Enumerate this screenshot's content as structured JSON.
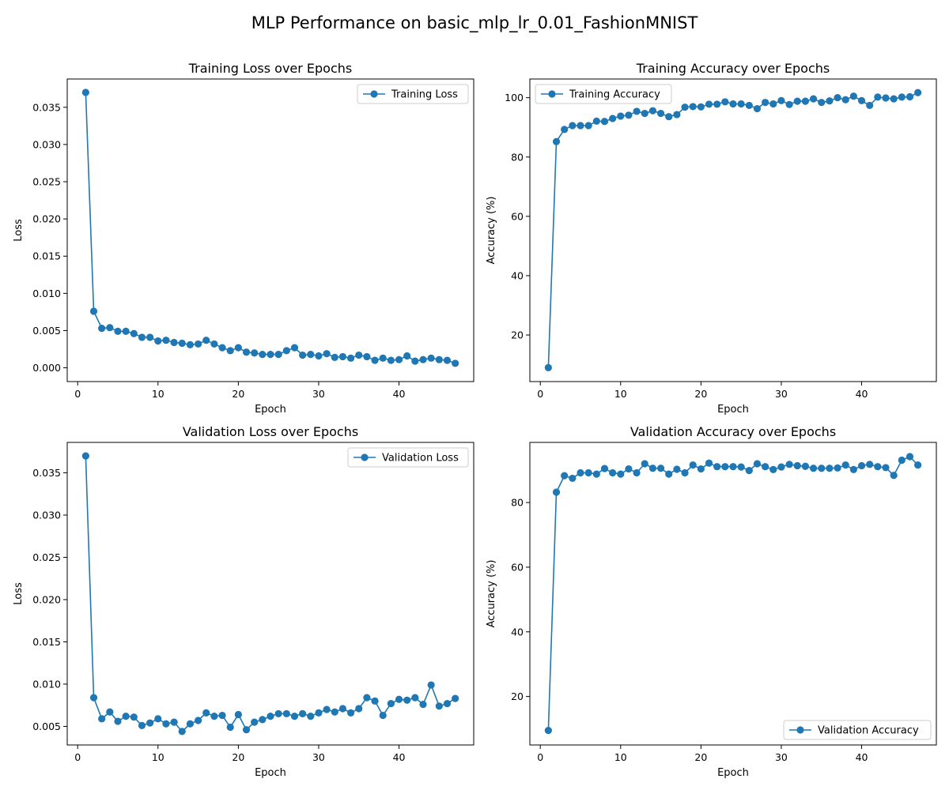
{
  "figure": {
    "title": "MLP Performance on basic_mlp_lr_0.01_FashionMNIST"
  },
  "colors": {
    "series": "#1f77b4",
    "axes": "#000000",
    "legend_border": "#cccccc"
  },
  "chart_data": [
    {
      "type": "line",
      "title": "Training Loss over Epochs",
      "xlabel": "Epoch",
      "ylabel": "Loss",
      "xlim": [
        -1.3,
        49.3
      ],
      "ylim": [
        -0.00185,
        0.0388
      ],
      "xticks": [
        0,
        10,
        20,
        30,
        40
      ],
      "yticks": [
        0.0,
        0.005,
        0.01,
        0.015,
        0.02,
        0.025,
        0.03,
        0.035
      ],
      "ytick_labels": [
        "0.000",
        "0.005",
        "0.010",
        "0.015",
        "0.020",
        "0.025",
        "0.030",
        "0.035"
      ],
      "grid": false,
      "legend_position": "upper right",
      "series": [
        {
          "name": "Training Loss",
          "x": [
            1,
            2,
            3,
            4,
            5,
            6,
            7,
            8,
            9,
            10,
            11,
            12,
            13,
            14,
            15,
            16,
            17,
            18,
            19,
            20,
            21,
            22,
            23,
            24,
            25,
            26,
            27,
            28,
            29,
            30,
            31,
            32,
            33,
            34,
            35,
            36,
            37,
            38,
            39,
            40,
            41,
            42,
            43,
            44,
            45,
            46,
            47
          ],
          "y": [
            0.037,
            0.0076,
            0.0053,
            0.0054,
            0.0049,
            0.0049,
            0.0046,
            0.0041,
            0.0041,
            0.0036,
            0.0037,
            0.0034,
            0.0033,
            0.0031,
            0.0032,
            0.0037,
            0.0032,
            0.0027,
            0.0023,
            0.0027,
            0.0021,
            0.002,
            0.0018,
            0.0018,
            0.0018,
            0.0023,
            0.0027,
            0.0017,
            0.0018,
            0.0016,
            0.0019,
            0.0014,
            0.0015,
            0.0013,
            0.0017,
            0.0015,
            0.001,
            0.0013,
            0.001,
            0.0011,
            0.0016,
            0.0009,
            0.0011,
            0.0013,
            0.0011,
            0.001,
            0.0006
          ]
        }
      ]
    },
    {
      "type": "line",
      "title": "Training Accuracy over Epochs",
      "xlabel": "Epoch",
      "ylabel": "Accuracy (%)",
      "xlim": [
        -1.3,
        49.3
      ],
      "ylim": [
        4.3,
        106.3
      ],
      "xticks": [
        0,
        10,
        20,
        30,
        40
      ],
      "yticks": [
        20,
        40,
        60,
        80,
        100
      ],
      "ytick_labels": [
        "20",
        "40",
        "60",
        "80",
        "100"
      ],
      "grid": false,
      "legend_position": "upper left",
      "series": [
        {
          "name": "Training Accuracy",
          "x": [
            1,
            2,
            3,
            4,
            5,
            6,
            7,
            8,
            9,
            10,
            11,
            12,
            13,
            14,
            15,
            16,
            17,
            18,
            19,
            20,
            21,
            22,
            23,
            24,
            25,
            26,
            27,
            28,
            29,
            30,
            31,
            32,
            33,
            34,
            35,
            36,
            37,
            38,
            39,
            40,
            41,
            42,
            43,
            44,
            45,
            46,
            47
          ],
          "y": [
            9.0,
            85.2,
            89.3,
            90.6,
            90.6,
            90.6,
            92.1,
            92.0,
            93.0,
            93.8,
            94.1,
            95.4,
            94.7,
            95.6,
            94.7,
            93.6,
            94.3,
            96.8,
            97.0,
            96.9,
            97.8,
            97.8,
            98.6,
            97.9,
            97.9,
            97.4,
            96.3,
            98.4,
            97.9,
            99.0,
            97.7,
            98.8,
            98.8,
            99.6,
            98.4,
            98.9,
            100.0,
            99.3,
            100.5,
            99.0,
            97.4,
            100.2,
            99.9,
            99.6,
            100.2,
            100.3,
            101.7
          ]
        }
      ]
    },
    {
      "type": "line",
      "title": "Validation Loss over Epochs",
      "xlabel": "Epoch",
      "ylabel": "Loss",
      "xlim": [
        -1.3,
        49.3
      ],
      "ylim": [
        0.0028,
        0.0386
      ],
      "xticks": [
        0,
        10,
        20,
        30,
        40
      ],
      "yticks": [
        0.005,
        0.01,
        0.015,
        0.02,
        0.025,
        0.03,
        0.035
      ],
      "ytick_labels": [
        "0.005",
        "0.010",
        "0.015",
        "0.020",
        "0.025",
        "0.030",
        "0.035"
      ],
      "grid": false,
      "legend_position": "upper right",
      "series": [
        {
          "name": "Validation Loss",
          "x": [
            1,
            2,
            3,
            4,
            5,
            6,
            7,
            8,
            9,
            10,
            11,
            12,
            13,
            14,
            15,
            16,
            17,
            18,
            19,
            20,
            21,
            22,
            23,
            24,
            25,
            26,
            27,
            28,
            29,
            30,
            31,
            32,
            33,
            34,
            35,
            36,
            37,
            38,
            39,
            40,
            41,
            42,
            43,
            44,
            45,
            46,
            47
          ],
          "y": [
            0.037,
            0.0084,
            0.0059,
            0.0067,
            0.0056,
            0.0062,
            0.0061,
            0.0051,
            0.0054,
            0.0059,
            0.0053,
            0.0055,
            0.0044,
            0.0053,
            0.0057,
            0.0066,
            0.0062,
            0.0063,
            0.0049,
            0.0064,
            0.0046,
            0.0055,
            0.0058,
            0.0062,
            0.0065,
            0.0065,
            0.0062,
            0.0065,
            0.0062,
            0.0066,
            0.007,
            0.0067,
            0.0071,
            0.0066,
            0.0071,
            0.0084,
            0.008,
            0.0063,
            0.0077,
            0.0082,
            0.0081,
            0.0084,
            0.0076,
            0.0099,
            0.0074,
            0.0077,
            0.0083
          ]
        }
      ]
    },
    {
      "type": "line",
      "title": "Validation Accuracy over Epochs",
      "xlabel": "Epoch",
      "ylabel": "Accuracy (%)",
      "xlim": [
        -1.3,
        49.3
      ],
      "ylim": [
        5.0,
        98.6
      ],
      "xticks": [
        0,
        10,
        20,
        30,
        40
      ],
      "yticks": [
        20,
        40,
        60,
        80
      ],
      "ytick_labels": [
        "20",
        "40",
        "60",
        "80"
      ],
      "grid": false,
      "legend_position": "lower right",
      "series": [
        {
          "name": "Validation Accuracy",
          "x": [
            1,
            2,
            3,
            4,
            5,
            6,
            7,
            8,
            9,
            10,
            11,
            12,
            13,
            14,
            15,
            16,
            17,
            18,
            19,
            20,
            21,
            22,
            23,
            24,
            25,
            26,
            27,
            28,
            29,
            30,
            31,
            32,
            33,
            34,
            35,
            36,
            37,
            38,
            39,
            40,
            41,
            42,
            43,
            44,
            45,
            46,
            47
          ],
          "y": [
            9.5,
            83.2,
            88.3,
            87.5,
            89.2,
            89.2,
            88.8,
            90.5,
            89.2,
            88.8,
            90.4,
            89.2,
            92.0,
            90.6,
            90.6,
            88.8,
            90.3,
            89.2,
            91.6,
            90.4,
            92.2,
            91.1,
            91.1,
            91.1,
            91.0,
            89.9,
            92.0,
            91.1,
            90.2,
            91.0,
            91.8,
            91.4,
            91.2,
            90.6,
            90.6,
            90.6,
            90.7,
            91.6,
            90.2,
            91.4,
            91.8,
            91.1,
            90.8,
            88.4,
            93.1,
            94.2,
            91.6
          ]
        }
      ]
    }
  ]
}
